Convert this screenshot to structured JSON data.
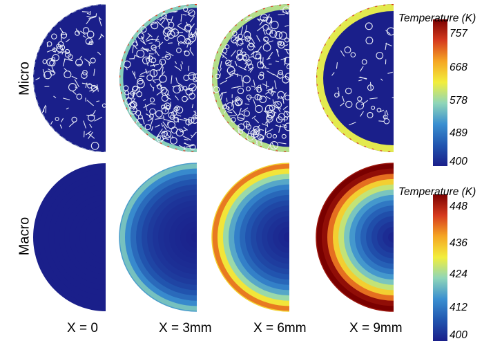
{
  "rows": [
    {
      "label": "Micro"
    },
    {
      "label": "Macro"
    }
  ],
  "columns": [
    {
      "label": "X = 0",
      "heat_level": 0.0
    },
    {
      "label": "X = 3mm",
      "heat_level": 0.33
    },
    {
      "label": "X = 6mm",
      "heat_level": 0.66
    },
    {
      "label": "X = 9mm",
      "heat_level": 1.0
    }
  ],
  "colorbars": [
    {
      "title": "Temperature (K)",
      "ticks": [
        "757",
        "668",
        "578",
        "489",
        "400"
      ]
    },
    {
      "title": "Temperature (K)",
      "ticks": [
        "448",
        "436",
        "424",
        "412",
        "400"
      ]
    }
  ],
  "colors": {
    "deep_blue": "#1a1f8a",
    "fiber": "#e8ecf5",
    "colormap": [
      "#7a0000",
      "#d63a1e",
      "#f5a623",
      "#f2ee3c",
      "#8fd6b8",
      "#3a8fd0",
      "#2156b0",
      "#1a1f8a"
    ]
  }
}
